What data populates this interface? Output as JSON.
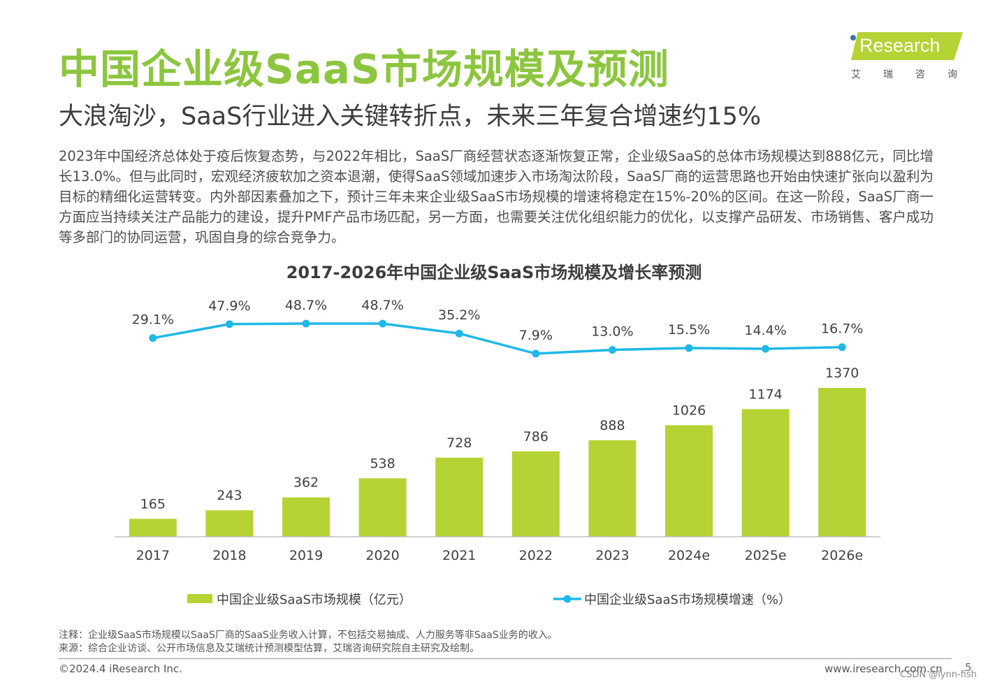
{
  "header": {
    "title": "中国企业级SaaS市场规模及预测",
    "subtitle": "大浪淘沙，SaaS行业进入关键转折点，未来三年复合增速约15%"
  },
  "logo": {
    "name": "Research",
    "cn": "艾瑞咨询"
  },
  "body_text": "2023年中国经济总体处于疫后恢复态势，与2022年相比，SaaS厂商经营状态逐渐恢复正常，企业级SaaS的总体市场规模达到888亿元，同比增长13.0%。但与此同时，宏观经济疲软加之资本退潮，使得SaaS领域加速步入市场淘汰阶段，SaaS厂商的运营思路也开始由快速扩张向以盈利为目标的精细化运营转变。内外部因素叠加之下，预计三年未来企业级SaaS市场规模的增速将稳定在15%-20%的区间。在这一阶段，SaaS厂商一方面应当持续关注产品能力的建设，提升PMF产品市场匹配，另一方面，也需要关注优化组织能力的优化，以支撑产品研发、市场销售、客户成功等多部门的协同运营，巩固自身的综合竞争力。",
  "chart_data": {
    "type": "bar+line",
    "title": "2017-2026年中国企业级SaaS市场规模及增长率预测",
    "categories": [
      "2017",
      "2018",
      "2019",
      "2020",
      "2021",
      "2022",
      "2023",
      "2024e",
      "2025e",
      "2026e"
    ],
    "series": [
      {
        "name": "中国企业级SaaS市场规模（亿元）",
        "type": "bar",
        "color": "#b5d334",
        "values": [
          165,
          243,
          362,
          538,
          728,
          786,
          888,
          1026,
          1174,
          1370
        ]
      },
      {
        "name": "中国企业级SaaS市场规模增速（%）",
        "type": "line",
        "color": "#1fb8e8",
        "values": [
          29.1,
          47.9,
          48.7,
          48.7,
          35.2,
          7.9,
          13.0,
          15.5,
          14.4,
          16.7
        ],
        "labels": [
          "29.1%",
          "47.9%",
          "48.7%",
          "48.7%",
          "35.2%",
          "7.9%",
          "13.0%",
          "15.5%",
          "14.4%",
          "16.7%"
        ]
      }
    ],
    "bar_ylim": [
      0,
      1370
    ],
    "line_ylim": [
      7.9,
      48.7
    ],
    "legend": "bottom"
  },
  "notes": {
    "note": "注释：企业级SaaS市场规模以SaaS厂商的SaaS业务收入计算，不包括交易抽成、人力服务等非SaaS业务的收入。",
    "source": "来源：综合企业访谈、公开市场信息及艾瑞统计预测模型估算，艾瑞咨询研究院自主研究及绘制。"
  },
  "footer": {
    "copyright": "©2024.4 iResearch Inc.",
    "website": "www.iresearch.com.cn",
    "page": "5",
    "watermark": "CSDN @lynn-fish"
  }
}
